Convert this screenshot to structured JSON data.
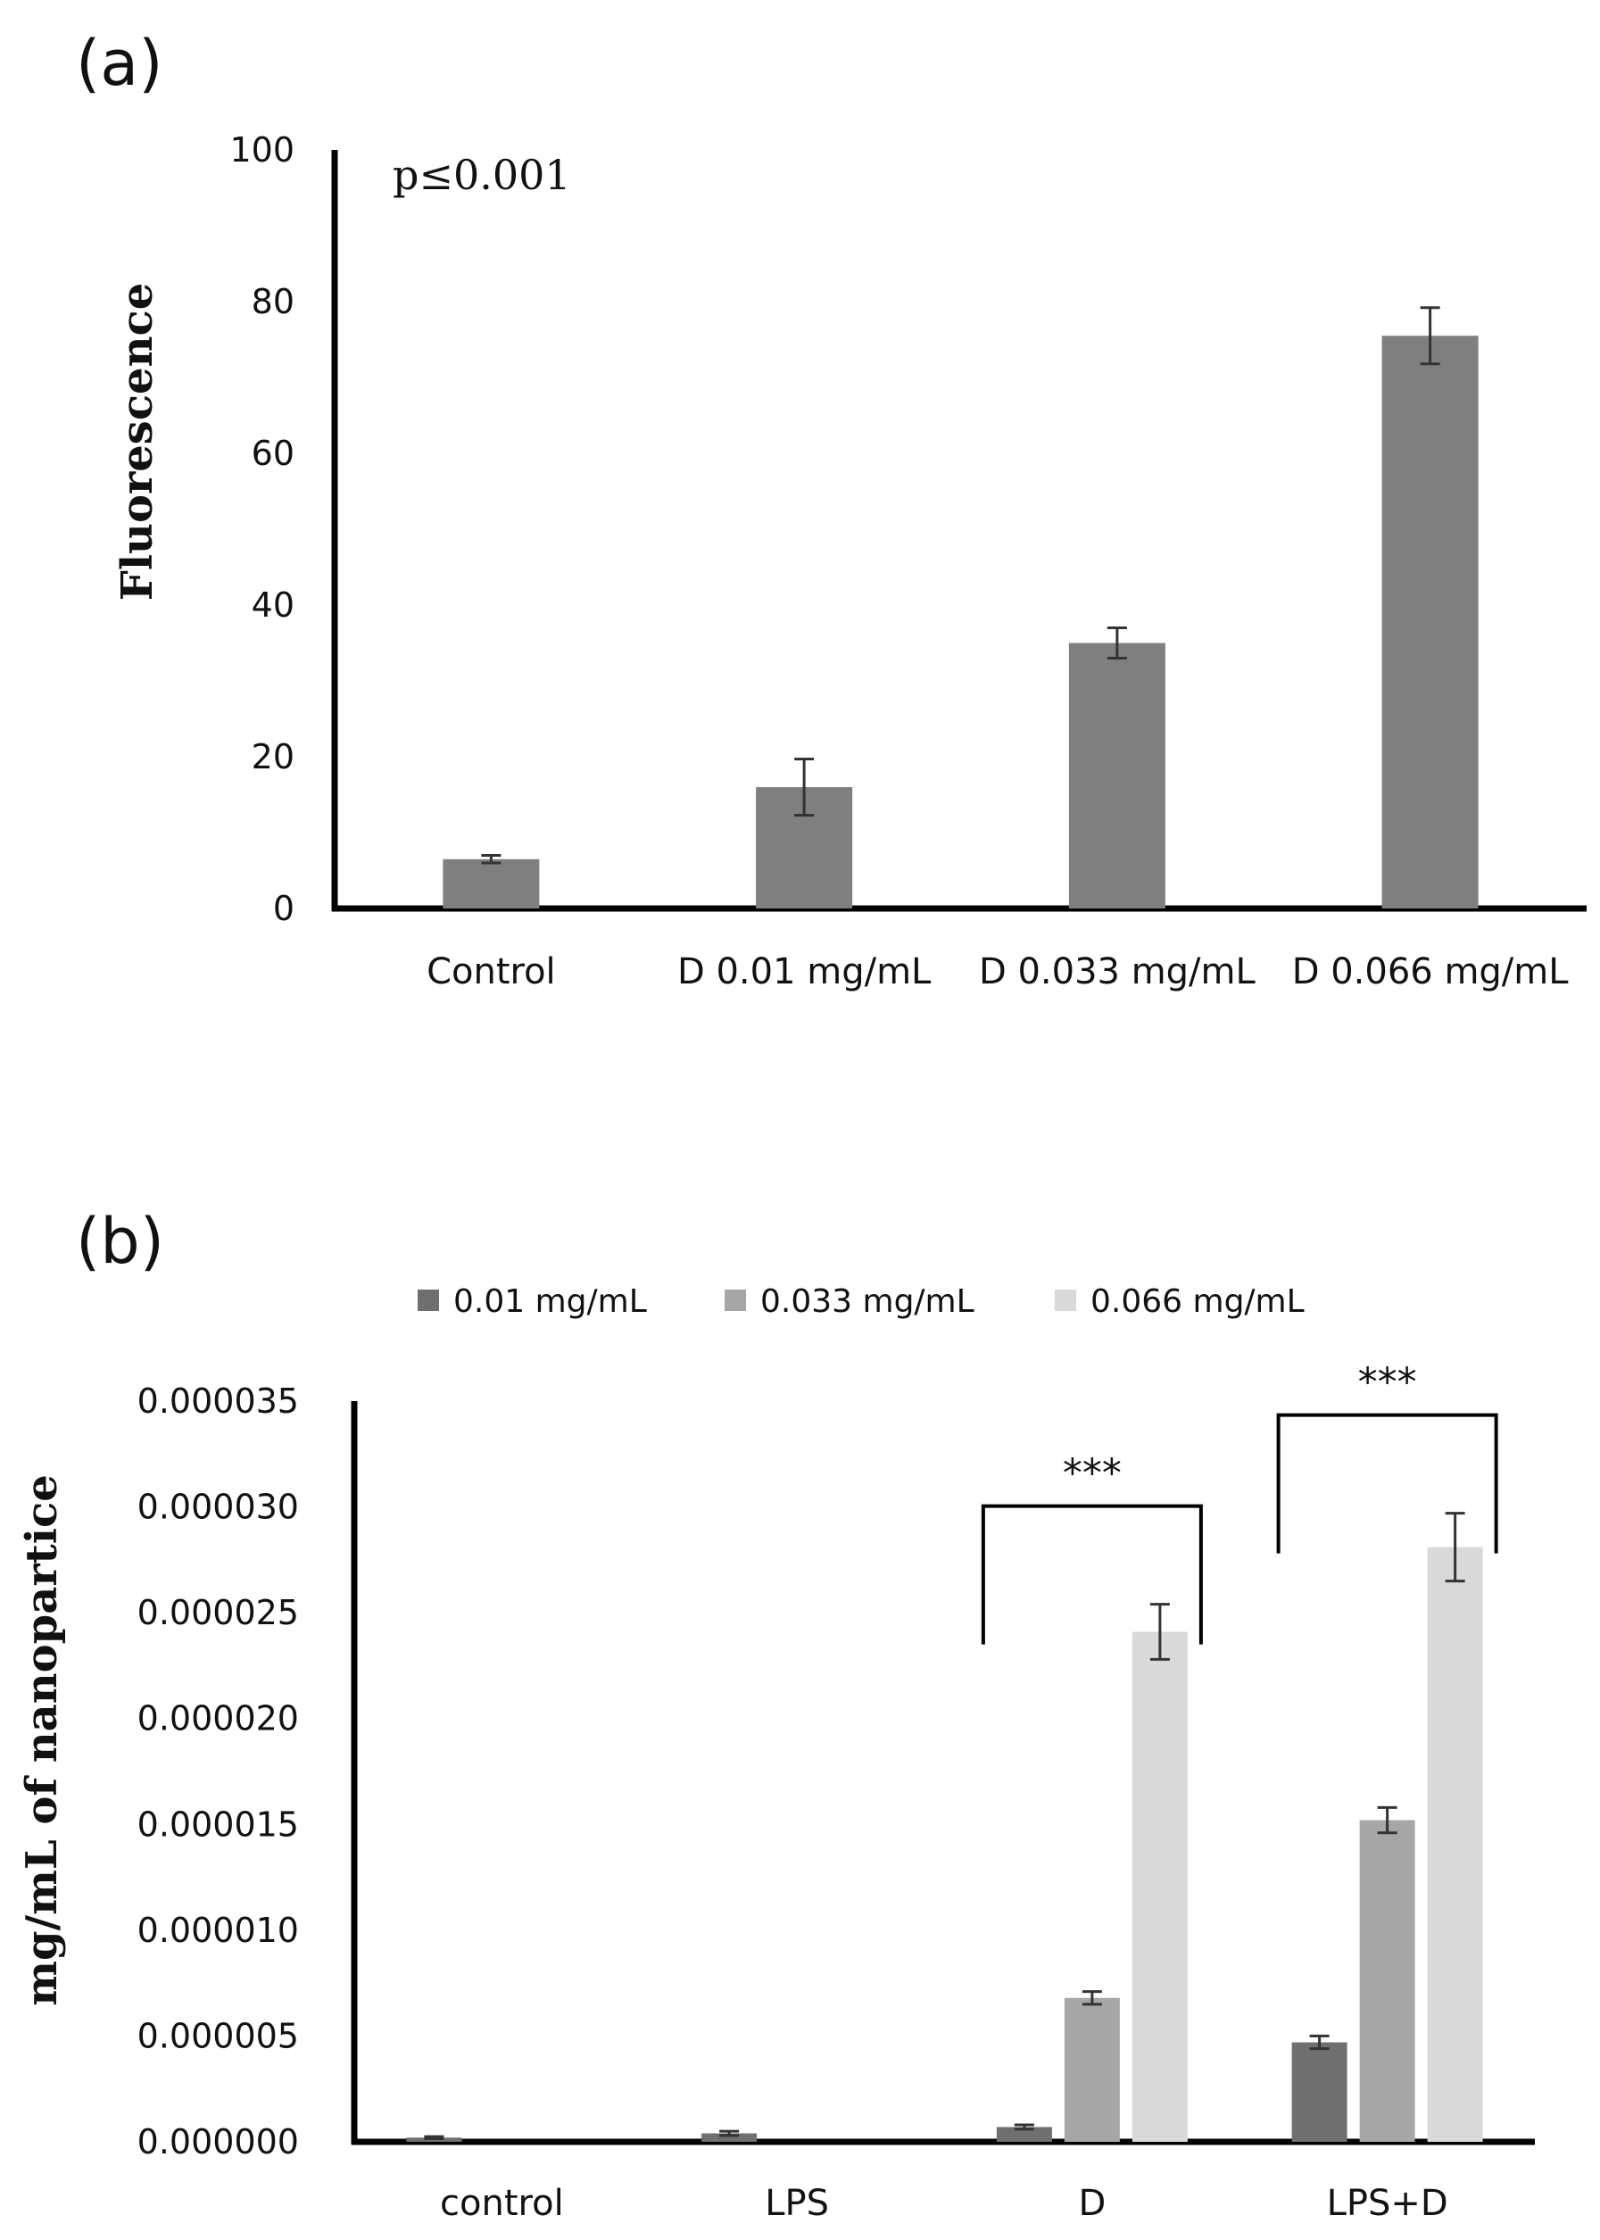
{
  "chart_data": [
    {
      "type": "bar",
      "panel_label": "(a)",
      "title": "",
      "xlabel": "",
      "ylabel": "Fluorescence",
      "ylim": [
        0,
        100
      ],
      "yticks": [
        "0",
        "20",
        "40",
        "60",
        "80",
        "100"
      ],
      "ytick_values": [
        0,
        20,
        40,
        60,
        80,
        100
      ],
      "annotation": "p≤0.001",
      "categories": [
        "Control",
        "D 0.01 mg/mL",
        "D 0.033 mg/mL",
        "D 0.066 mg/mL"
      ],
      "values": [
        6.5,
        16,
        35,
        75.5
      ],
      "errors": [
        0.5,
        3.7,
        2.0,
        3.7
      ],
      "color": "#7f7f7f"
    },
    {
      "type": "bar",
      "panel_label": "(b)",
      "title": "",
      "xlabel": "",
      "ylabel": "mg/mL of nanopartice",
      "ylim": [
        0,
        3.5e-05
      ],
      "yticks": [
        "0.000000",
        "0.000005",
        "0.000010",
        "0.000015",
        "0.000020",
        "0.000025",
        "0.000030",
        "0.000035"
      ],
      "ytick_values": [
        0,
        5e-06,
        1e-05,
        1.5e-05,
        2e-05,
        2.5e-05,
        3e-05,
        3.5e-05
      ],
      "categories": [
        "control",
        "LPS",
        "D",
        "LPS+D"
      ],
      "legend_position": "top",
      "series": [
        {
          "name": "0.01 mg/mL",
          "color": "#6f6f6f",
          "values": [
            2e-07,
            4e-07,
            7e-07,
            4.7e-06
          ],
          "errors": [
            5e-08,
            1e-07,
            1e-07,
            3e-07
          ]
        },
        {
          "name": "0.033 mg/mL",
          "color": "#a6a6a6",
          "values": [
            0,
            0,
            6.8e-06,
            1.52e-05
          ],
          "errors": [
            0,
            0,
            3e-07,
            6e-07
          ]
        },
        {
          "name": "0.066 mg/mL",
          "color": "#d9d9d9",
          "values": [
            0,
            0,
            2.41e-05,
            2.81e-05
          ],
          "errors": [
            0,
            0,
            1.3e-06,
            1.6e-06
          ]
        }
      ],
      "significance": [
        {
          "category": "D",
          "label": "***"
        },
        {
          "category": "LPS+D",
          "label": "***"
        }
      ]
    }
  ]
}
